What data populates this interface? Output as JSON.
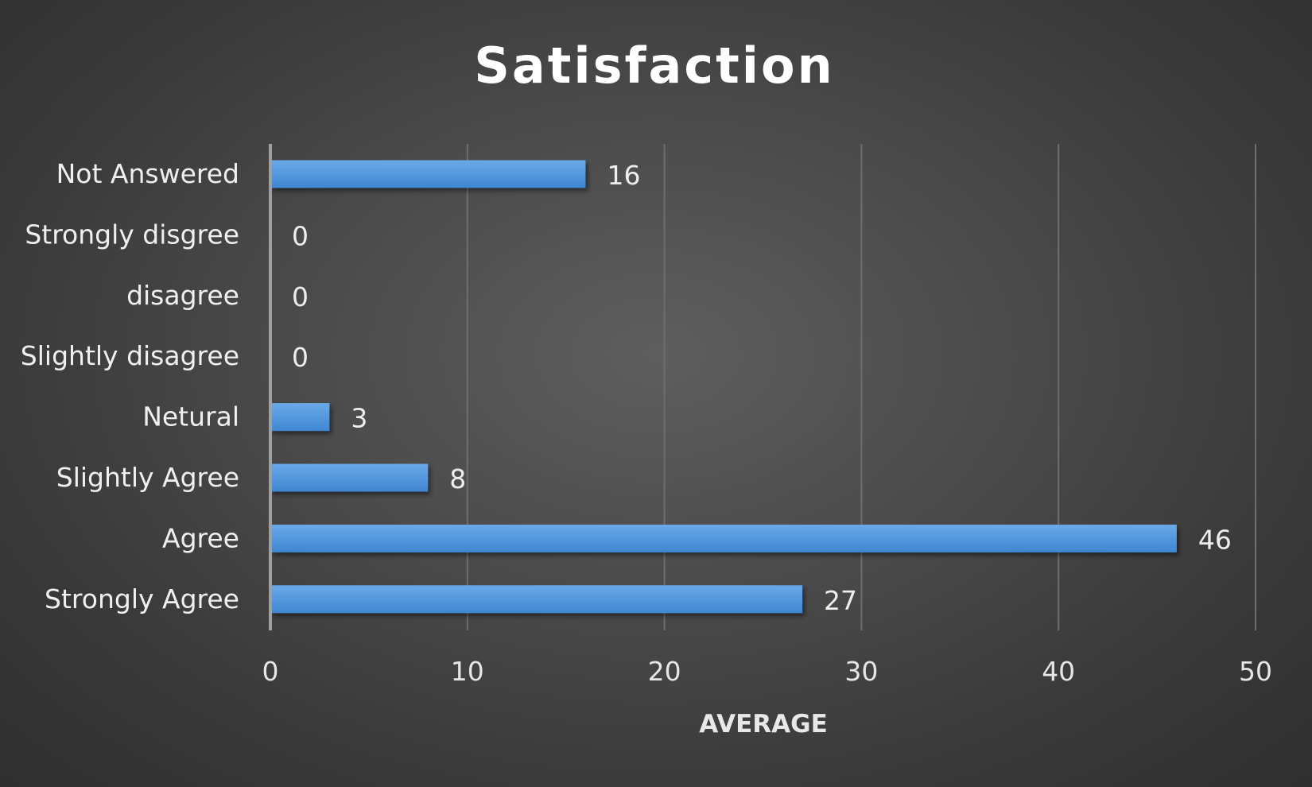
{
  "chart_data": {
    "type": "bar",
    "orientation": "horizontal",
    "title": "Satisfaction",
    "xlabel": "AVERAGE",
    "ylabel": "",
    "categories": [
      "Not Answered",
      "Strongly disgree",
      "disagree",
      "Slightly disagree",
      "Netural",
      "Slightly Agree",
      "Agree",
      "Strongly Agree"
    ],
    "values": [
      16,
      0,
      0,
      0,
      3,
      8,
      46,
      27
    ],
    "xlim": [
      0,
      50
    ],
    "x_ticks": [
      "0",
      "10",
      "20",
      "30",
      "40",
      "50"
    ],
    "grid": true,
    "legend": "none",
    "data_labels": true,
    "colors": {
      "bar": "#4a90d9",
      "bar_light": "#6aa7e6",
      "background": "#474747",
      "text": "#f0f0f0"
    }
  }
}
